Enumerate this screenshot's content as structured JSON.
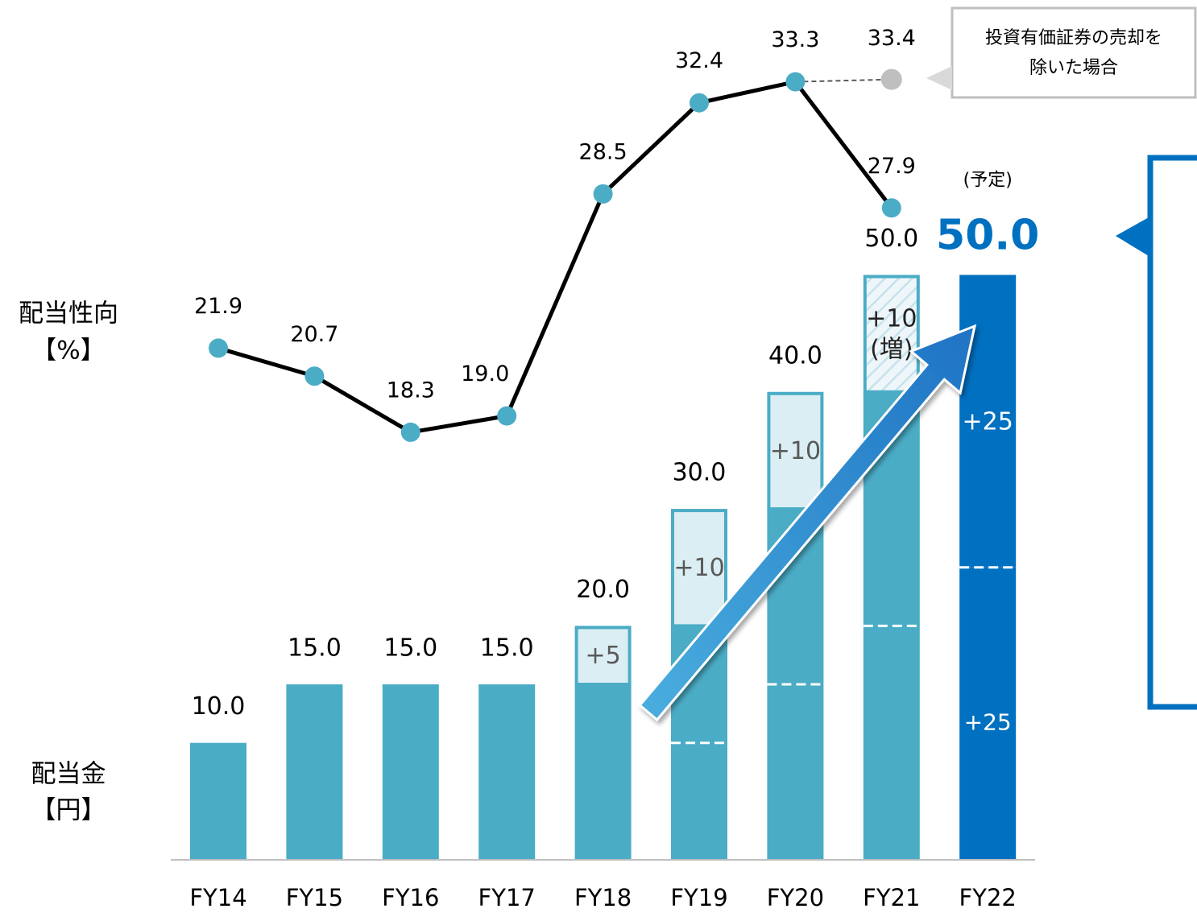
{
  "chart_data": {
    "type": "bar-line",
    "categories": [
      "FY14",
      "FY15",
      "FY16",
      "FY17",
      "FY18",
      "FY19",
      "FY20",
      "FY21",
      "FY22"
    ],
    "base_values": [
      10,
      15,
      15,
      15,
      15,
      20,
      30,
      40,
      25
    ],
    "base_labels": [
      null,
      null,
      null,
      null,
      null,
      null,
      null,
      null,
      "+25"
    ],
    "base_colors": [
      "#4bacc6",
      "#4bacc6",
      "#4bacc6",
      "#4bacc6",
      "#4bacc6",
      "#4bacc6",
      "#4bacc6",
      "#4bacc6",
      "#0070c0"
    ],
    "increase_values": [
      null,
      null,
      null,
      null,
      5,
      10,
      10,
      10,
      25
    ],
    "increase_labels": [
      null,
      null,
      null,
      null,
      "+5",
      "+10",
      "+10",
      "+10\n(増)",
      "+25"
    ],
    "increase_fills": [
      null,
      null,
      null,
      null,
      "#daeef3",
      "#daeef3",
      "#daeef3",
      "hatch",
      "#0070c0"
    ],
    "dividers": [
      null,
      null,
      null,
      null,
      null,
      10,
      15,
      20,
      25
    ],
    "totals": [
      10,
      15,
      15,
      15,
      20,
      30,
      40,
      50,
      50
    ],
    "total_labels": [
      "10.0",
      "15.0",
      "15.0",
      "15.0",
      "20.0",
      "30.0",
      "40.0",
      "50.0",
      "50.0"
    ],
    "forecast_label": "(予定)",
    "ylim": [
      0,
      73.5
    ],
    "payout_ratio": [
      21.9,
      20.7,
      18.3,
      19.0,
      28.5,
      32.4,
      33.3,
      27.9,
      null
    ],
    "payout_labels": [
      "21.9",
      "20.7",
      "18.3",
      "19.0",
      "28.5",
      "32.4",
      "33.3",
      "27.9",
      null
    ],
    "line_color": "#000000",
    "marker_color": "#4bacc6",
    "y2lim": [
      0,
      36.8
    ],
    "excluded_value": 33.4,
    "excluded_label": "33.4",
    "excluded_color": "#bfbfbf",
    "excluded_note": [
      "投資有価証券の売却を",
      "除いた場合"
    ],
    "y2_label": [
      "配当性向",
      "【%】"
    ],
    "y_label": [
      "配当金",
      "【円】"
    ]
  }
}
